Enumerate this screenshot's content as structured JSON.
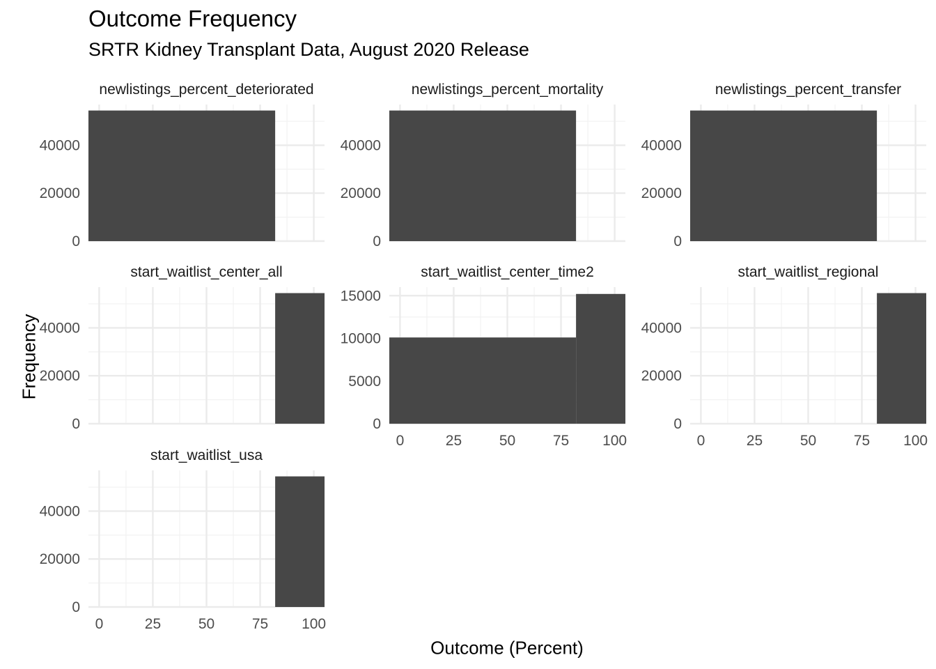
{
  "title": "Outcome Frequency",
  "subtitle": "SRTR Kidney Transplant Data, August 2020 Release",
  "colors": {
    "bar": "#474747",
    "grid_major": "#ebebeb",
    "grid_minor": "#f2f2f2",
    "text": "#4d4d4d"
  },
  "chart_data": {
    "type": "bar",
    "title": "Outcome Frequency",
    "subtitle": "SRTR Kidney Transplant Data, August 2020 Release",
    "xlabel": "Outcome (Percent)",
    "ylabel": "Frequency",
    "layout": "facet_wrap",
    "grid": true,
    "legend": "none",
    "x_ticks": [
      0,
      25,
      50,
      75,
      100
    ],
    "xlim": [
      -5,
      105
    ],
    "bin_edges": [
      -5,
      82,
      105
    ],
    "facets": [
      {
        "name": "newlistings_percent_deteriorated",
        "bins": [
          {
            "x0": -5,
            "x1": 82,
            "count": 54500
          }
        ],
        "y_ticks": [
          0,
          20000,
          40000
        ],
        "ylim": [
          0,
          57000
        ],
        "show_x_ticks": false
      },
      {
        "name": "newlistings_percent_mortality",
        "bins": [
          {
            "x0": -5,
            "x1": 82,
            "count": 54500
          }
        ],
        "y_ticks": [
          0,
          20000,
          40000
        ],
        "ylim": [
          0,
          57000
        ],
        "show_x_ticks": false
      },
      {
        "name": "newlistings_percent_transfer",
        "bins": [
          {
            "x0": -5,
            "x1": 82,
            "count": 54500
          }
        ],
        "y_ticks": [
          0,
          20000,
          40000
        ],
        "ylim": [
          0,
          57000
        ],
        "show_x_ticks": false
      },
      {
        "name": "start_waitlist_center_all",
        "bins": [
          {
            "x0": 82,
            "x1": 105,
            "count": 54500
          }
        ],
        "y_ticks": [
          0,
          20000,
          40000
        ],
        "ylim": [
          0,
          57000
        ],
        "show_x_ticks": false
      },
      {
        "name": "start_waitlist_center_time2",
        "bins": [
          {
            "x0": -5,
            "x1": 82,
            "count": 10100
          },
          {
            "x0": 82,
            "x1": 105,
            "count": 15200
          }
        ],
        "y_ticks": [
          0,
          5000,
          10000,
          15000
        ],
        "ylim": [
          0,
          16000
        ],
        "show_x_ticks": true
      },
      {
        "name": "start_waitlist_regional",
        "bins": [
          {
            "x0": 82,
            "x1": 105,
            "count": 54500
          }
        ],
        "y_ticks": [
          0,
          20000,
          40000
        ],
        "ylim": [
          0,
          57000
        ],
        "show_x_ticks": true
      },
      {
        "name": "start_waitlist_usa",
        "bins": [
          {
            "x0": 82,
            "x1": 105,
            "count": 54500
          }
        ],
        "y_ticks": [
          0,
          20000,
          40000
        ],
        "ylim": [
          0,
          57000
        ],
        "show_x_ticks": true
      }
    ]
  }
}
